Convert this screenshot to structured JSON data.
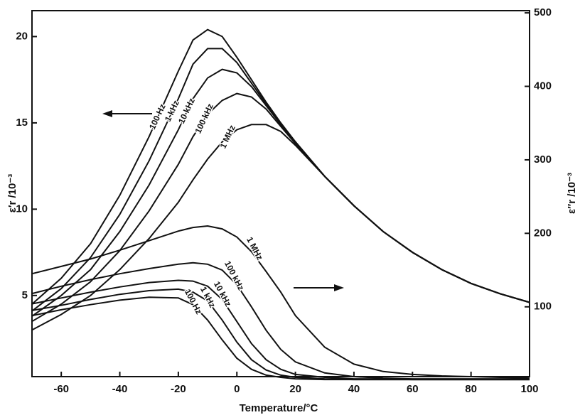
{
  "chart_data": {
    "type": "line",
    "xlabel": "Temperature/°C",
    "ylabel": "ε′r /10⁻³",
    "y2label": "ε″r /10⁻³",
    "x": [
      -70,
      -60,
      -50,
      -40,
      -30,
      -20,
      -15,
      -10,
      -5,
      0,
      5,
      10,
      15,
      20,
      30,
      40,
      50,
      60,
      70,
      80,
      90,
      100
    ],
    "xlim": [
      -70,
      100
    ],
    "xticks": [
      -60,
      -40,
      -20,
      0,
      20,
      40,
      60,
      80,
      100
    ],
    "ylim": [
      0.3,
      21.5
    ],
    "yticks": [
      5,
      10,
      15,
      20
    ],
    "y2lim": [
      5,
      503
    ],
    "y2ticks": [
      100,
      200,
      300,
      400,
      500
    ],
    "series": [
      {
        "name": "100 Hz",
        "color": "#111111",
        "values": [
          4.5,
          6.0,
          8.0,
          10.8,
          14.2,
          18.0,
          19.8,
          20.4,
          20.0,
          18.8,
          17.5,
          16.2,
          15.0,
          13.9,
          11.9,
          10.2,
          8.7,
          7.5,
          6.5,
          5.7,
          5.1,
          4.6
        ]
      },
      {
        "name": "1 kHz",
        "color": "#111111",
        "values": [
          4.1,
          5.4,
          7.2,
          9.7,
          12.8,
          16.4,
          18.4,
          19.3,
          19.3,
          18.5,
          17.3,
          16.1,
          14.9,
          13.9,
          11.9,
          10.2,
          8.7,
          7.5,
          6.5,
          5.7,
          5.1,
          4.6
        ]
      },
      {
        "name": "10 kHz",
        "color": "#111111",
        "values": [
          3.8,
          5.0,
          6.5,
          8.7,
          11.4,
          14.6,
          16.4,
          17.6,
          18.1,
          17.9,
          17.1,
          16.0,
          14.9,
          13.9,
          11.9,
          10.2,
          8.7,
          7.5,
          6.5,
          5.7,
          5.1,
          4.6
        ]
      },
      {
        "name": "100 kHz",
        "color": "#111111",
        "values": [
          3.5,
          4.5,
          5.8,
          7.6,
          9.9,
          12.6,
          14.2,
          15.5,
          16.3,
          16.7,
          16.5,
          15.8,
          14.8,
          13.8,
          11.9,
          10.2,
          8.7,
          7.5,
          6.5,
          5.7,
          5.1,
          4.6
        ]
      },
      {
        "name": "1 MHz",
        "color": "#111111",
        "values": [
          3.0,
          3.9,
          5.0,
          6.5,
          8.3,
          10.4,
          11.7,
          12.9,
          13.9,
          14.6,
          14.9,
          14.9,
          14.5,
          13.7,
          11.9,
          10.2,
          8.7,
          7.5,
          6.5,
          5.7,
          5.1,
          4.6
        ]
      },
      {
        "name": "1 MHz",
        "color": "#111111",
        "axis": "y2",
        "values": [
          145,
          155,
          165,
          177,
          190,
          203,
          208,
          210,
          206,
          195,
          175,
          148,
          120,
          88,
          45,
          22,
          12,
          8,
          6,
          5,
          4,
          3
        ]
      },
      {
        "name": "100 kHz",
        "color": "#111111",
        "axis": "y2",
        "values": [
          118,
          128,
          137,
          145,
          152,
          158,
          160,
          158,
          150,
          130,
          100,
          68,
          42,
          25,
          10,
          5,
          3,
          2,
          2,
          2,
          2,
          2
        ]
      },
      {
        "name": "10 kHz",
        "color": "#111111",
        "axis": "y2",
        "values": [
          104,
          112,
          120,
          127,
          133,
          136,
          135,
          128,
          110,
          80,
          50,
          28,
          15,
          8,
          4,
          2,
          2,
          1,
          1,
          1,
          1,
          1
        ]
      },
      {
        "name": "1 kHz",
        "color": "#111111",
        "axis": "y2",
        "values": [
          95,
          102,
          110,
          117,
          122,
          124,
          120,
          108,
          82,
          52,
          28,
          14,
          7,
          4,
          2,
          1,
          1,
          1,
          1,
          1,
          1,
          1
        ]
      },
      {
        "name": "100 Hz",
        "color": "#111111",
        "axis": "y2",
        "values": [
          88,
          96,
          103,
          109,
          113,
          112,
          103,
          82,
          55,
          30,
          15,
          7,
          4,
          2,
          1,
          1,
          1,
          1,
          1,
          1,
          1,
          1
        ]
      }
    ]
  }
}
